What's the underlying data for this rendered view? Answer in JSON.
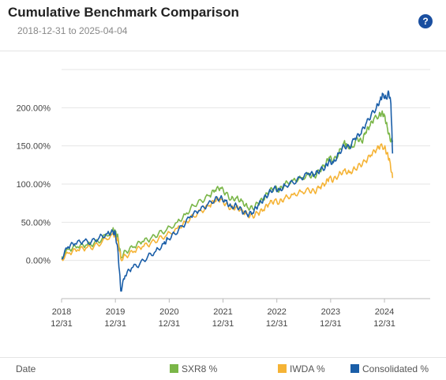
{
  "header": {
    "title": "Cumulative Benchmark Comparison",
    "subtitle": "2018-12-31 to 2025-04-04",
    "help_label": "?"
  },
  "legend": {
    "title": "Date",
    "items": [
      {
        "label": "SXR8 %",
        "color": "#7ab648"
      },
      {
        "label": "IWDA %",
        "color": "#f5b335"
      },
      {
        "label": "Consolidated %",
        "color": "#1a5ea8"
      }
    ]
  },
  "chart_data": {
    "type": "line",
    "title": "Cumulative Benchmark Comparison",
    "xlabel": "Date",
    "ylabel": "",
    "x_ticks": [
      {
        "year": "2018",
        "date": "12/31"
      },
      {
        "year": "2019",
        "date": "12/31"
      },
      {
        "year": "2020",
        "date": "12/31"
      },
      {
        "year": "2021",
        "date": "12/31"
      },
      {
        "year": "2022",
        "date": "12/31"
      },
      {
        "year": "2023",
        "date": "12/31"
      },
      {
        "year": "2024",
        "date": "12/31"
      }
    ],
    "y_ticks": [
      "0.00%",
      "50.00%",
      "100.00%",
      "150.00%",
      "200.00%"
    ],
    "ylim": [
      -50,
      250
    ],
    "xlim": [
      2018.0,
      2024.85
    ],
    "grid": true,
    "series": [
      {
        "name": "SXR8 %",
        "color": "#7ab648",
        "points": [
          [
            2018.0,
            5
          ],
          [
            2018.15,
            15
          ],
          [
            2018.3,
            18
          ],
          [
            2018.45,
            20
          ],
          [
            2018.6,
            22
          ],
          [
            2018.75,
            28
          ],
          [
            2018.95,
            40
          ],
          [
            2019.0,
            38
          ],
          [
            2019.05,
            30
          ],
          [
            2019.1,
            5
          ],
          [
            2019.2,
            12
          ],
          [
            2019.35,
            18
          ],
          [
            2019.5,
            25
          ],
          [
            2019.65,
            28
          ],
          [
            2019.8,
            35
          ],
          [
            2019.95,
            40
          ],
          [
            2020.15,
            50
          ],
          [
            2020.3,
            60
          ],
          [
            2020.45,
            72
          ],
          [
            2020.6,
            78
          ],
          [
            2020.75,
            85
          ],
          [
            2020.85,
            92
          ],
          [
            2020.95,
            95
          ],
          [
            2021.05,
            88
          ],
          [
            2021.15,
            80
          ],
          [
            2021.25,
            82
          ],
          [
            2021.35,
            78
          ],
          [
            2021.45,
            70
          ],
          [
            2021.55,
            68
          ],
          [
            2021.65,
            75
          ],
          [
            2021.75,
            80
          ],
          [
            2021.85,
            90
          ],
          [
            2021.95,
            95
          ],
          [
            2022.05,
            92
          ],
          [
            2022.15,
            100
          ],
          [
            2022.3,
            105
          ],
          [
            2022.45,
            108
          ],
          [
            2022.6,
            112
          ],
          [
            2022.7,
            110
          ],
          [
            2022.8,
            118
          ],
          [
            2022.9,
            125
          ],
          [
            2022.97,
            135
          ],
          [
            2023.05,
            130
          ],
          [
            2023.15,
            140
          ],
          [
            2023.25,
            155
          ],
          [
            2023.3,
            150
          ],
          [
            2023.4,
            148
          ],
          [
            2023.5,
            160
          ],
          [
            2023.58,
            155
          ],
          [
            2023.65,
            168
          ],
          [
            2023.72,
            175
          ],
          [
            2023.8,
            185
          ],
          [
            2023.9,
            190
          ],
          [
            2023.95,
            193
          ],
          [
            2024.0,
            190
          ],
          [
            2024.05,
            175
          ],
          [
            2024.1,
            160
          ],
          [
            2024.15,
            155
          ]
        ]
      },
      {
        "name": "IWDA %",
        "color": "#f5b335",
        "points": [
          [
            2018.0,
            2
          ],
          [
            2018.15,
            10
          ],
          [
            2018.3,
            14
          ],
          [
            2018.45,
            16
          ],
          [
            2018.6,
            18
          ],
          [
            2018.75,
            24
          ],
          [
            2018.95,
            35
          ],
          [
            2019.0,
            33
          ],
          [
            2019.05,
            25
          ],
          [
            2019.1,
            2
          ],
          [
            2019.2,
            6
          ],
          [
            2019.35,
            12
          ],
          [
            2019.5,
            18
          ],
          [
            2019.65,
            22
          ],
          [
            2019.8,
            28
          ],
          [
            2019.95,
            33
          ],
          [
            2020.15,
            42
          ],
          [
            2020.3,
            50
          ],
          [
            2020.45,
            58
          ],
          [
            2020.6,
            65
          ],
          [
            2020.75,
            72
          ],
          [
            2020.85,
            78
          ],
          [
            2020.95,
            80
          ],
          [
            2021.05,
            74
          ],
          [
            2021.15,
            68
          ],
          [
            2021.25,
            70
          ],
          [
            2021.35,
            66
          ],
          [
            2021.45,
            60
          ],
          [
            2021.55,
            58
          ],
          [
            2021.65,
            62
          ],
          [
            2021.75,
            66
          ],
          [
            2021.85,
            74
          ],
          [
            2021.95,
            78
          ],
          [
            2022.05,
            76
          ],
          [
            2022.15,
            82
          ],
          [
            2022.3,
            86
          ],
          [
            2022.45,
            90
          ],
          [
            2022.6,
            92
          ],
          [
            2022.7,
            90
          ],
          [
            2022.8,
            96
          ],
          [
            2022.9,
            100
          ],
          [
            2022.97,
            108
          ],
          [
            2023.05,
            105
          ],
          [
            2023.15,
            112
          ],
          [
            2023.25,
            118
          ],
          [
            2023.35,
            115
          ],
          [
            2023.45,
            120
          ],
          [
            2023.55,
            125
          ],
          [
            2023.65,
            130
          ],
          [
            2023.75,
            138
          ],
          [
            2023.85,
            145
          ],
          [
            2023.92,
            150
          ],
          [
            2024.0,
            148
          ],
          [
            2024.05,
            140
          ],
          [
            2024.1,
            130
          ],
          [
            2024.15,
            108
          ]
        ]
      },
      {
        "name": "Consolidated %",
        "color": "#1a5ea8",
        "points": [
          [
            2018.0,
            3
          ],
          [
            2018.12,
            18
          ],
          [
            2018.25,
            22
          ],
          [
            2018.4,
            25
          ],
          [
            2018.55,
            24
          ],
          [
            2018.7,
            30
          ],
          [
            2018.85,
            35
          ],
          [
            2018.95,
            38
          ],
          [
            2019.0,
            35
          ],
          [
            2019.05,
            10
          ],
          [
            2019.1,
            -40
          ],
          [
            2019.18,
            -20
          ],
          [
            2019.3,
            -10
          ],
          [
            2019.45,
            -5
          ],
          [
            2019.6,
            5
          ],
          [
            2019.75,
            12
          ],
          [
            2019.9,
            22
          ],
          [
            2019.97,
            28
          ],
          [
            2020.1,
            35
          ],
          [
            2020.25,
            45
          ],
          [
            2020.4,
            58
          ],
          [
            2020.55,
            65
          ],
          [
            2020.7,
            72
          ],
          [
            2020.85,
            80
          ],
          [
            2020.95,
            82
          ],
          [
            2021.05,
            78
          ],
          [
            2021.15,
            70
          ],
          [
            2021.25,
            72
          ],
          [
            2021.35,
            65
          ],
          [
            2021.45,
            60
          ],
          [
            2021.55,
            62
          ],
          [
            2021.65,
            72
          ],
          [
            2021.75,
            80
          ],
          [
            2021.85,
            88
          ],
          [
            2021.95,
            95
          ],
          [
            2022.05,
            92
          ],
          [
            2022.15,
            98
          ],
          [
            2022.3,
            102
          ],
          [
            2022.45,
            108
          ],
          [
            2022.6,
            114
          ],
          [
            2022.7,
            112
          ],
          [
            2022.8,
            118
          ],
          [
            2022.9,
            122
          ],
          [
            2022.97,
            130
          ],
          [
            2023.05,
            128
          ],
          [
            2023.15,
            140
          ],
          [
            2023.25,
            150
          ],
          [
            2023.35,
            148
          ],
          [
            2023.45,
            160
          ],
          [
            2023.55,
            165
          ],
          [
            2023.65,
            178
          ],
          [
            2023.75,
            190
          ],
          [
            2023.85,
            200
          ],
          [
            2023.92,
            210
          ],
          [
            2023.97,
            218
          ],
          [
            2024.03,
            212
          ],
          [
            2024.08,
            220
          ],
          [
            2024.12,
            205
          ],
          [
            2024.15,
            140
          ]
        ]
      }
    ]
  }
}
